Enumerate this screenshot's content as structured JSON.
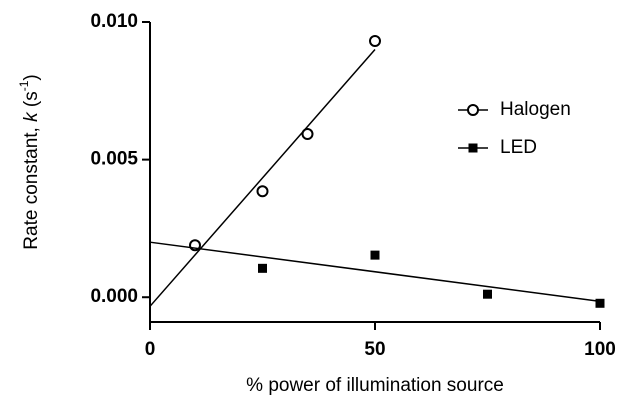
{
  "chart_data": {
    "type": "scatter",
    "xlabel": "% power of illumination source",
    "ylabel_parts": [
      "Rate constant, ",
      "k",
      " (s",
      "-1",
      ")"
    ],
    "xlim": [
      0,
      100
    ],
    "ylim": [
      -0.0009,
      0.01
    ],
    "xticks": [
      0,
      50,
      100
    ],
    "yticks": [
      {
        "value": 0,
        "label": "0.000"
      },
      {
        "value": 0.005,
        "label": "0.005"
      },
      {
        "value": 0.01,
        "label": "0.010"
      }
    ],
    "series": [
      {
        "name": "Halogen",
        "color": "#000000",
        "marker": "open-circle",
        "x": [
          10,
          25,
          35,
          50
        ],
        "values": [
          0.00189,
          0.00385,
          0.00593,
          0.00931
        ],
        "fit": {
          "x": [
            0,
            50
          ],
          "values": [
            -0.00033,
            0.009
          ]
        }
      },
      {
        "name": "LED",
        "color": "#000000",
        "marker": "filled-square",
        "x": [
          25,
          50,
          75,
          100
        ],
        "values": [
          0.00105,
          0.00153,
          0.00011,
          -0.00022
        ],
        "fit": {
          "x": [
            0,
            100
          ],
          "values": [
            0.002,
            -0.00015
          ]
        }
      }
    ],
    "legend": "right"
  }
}
